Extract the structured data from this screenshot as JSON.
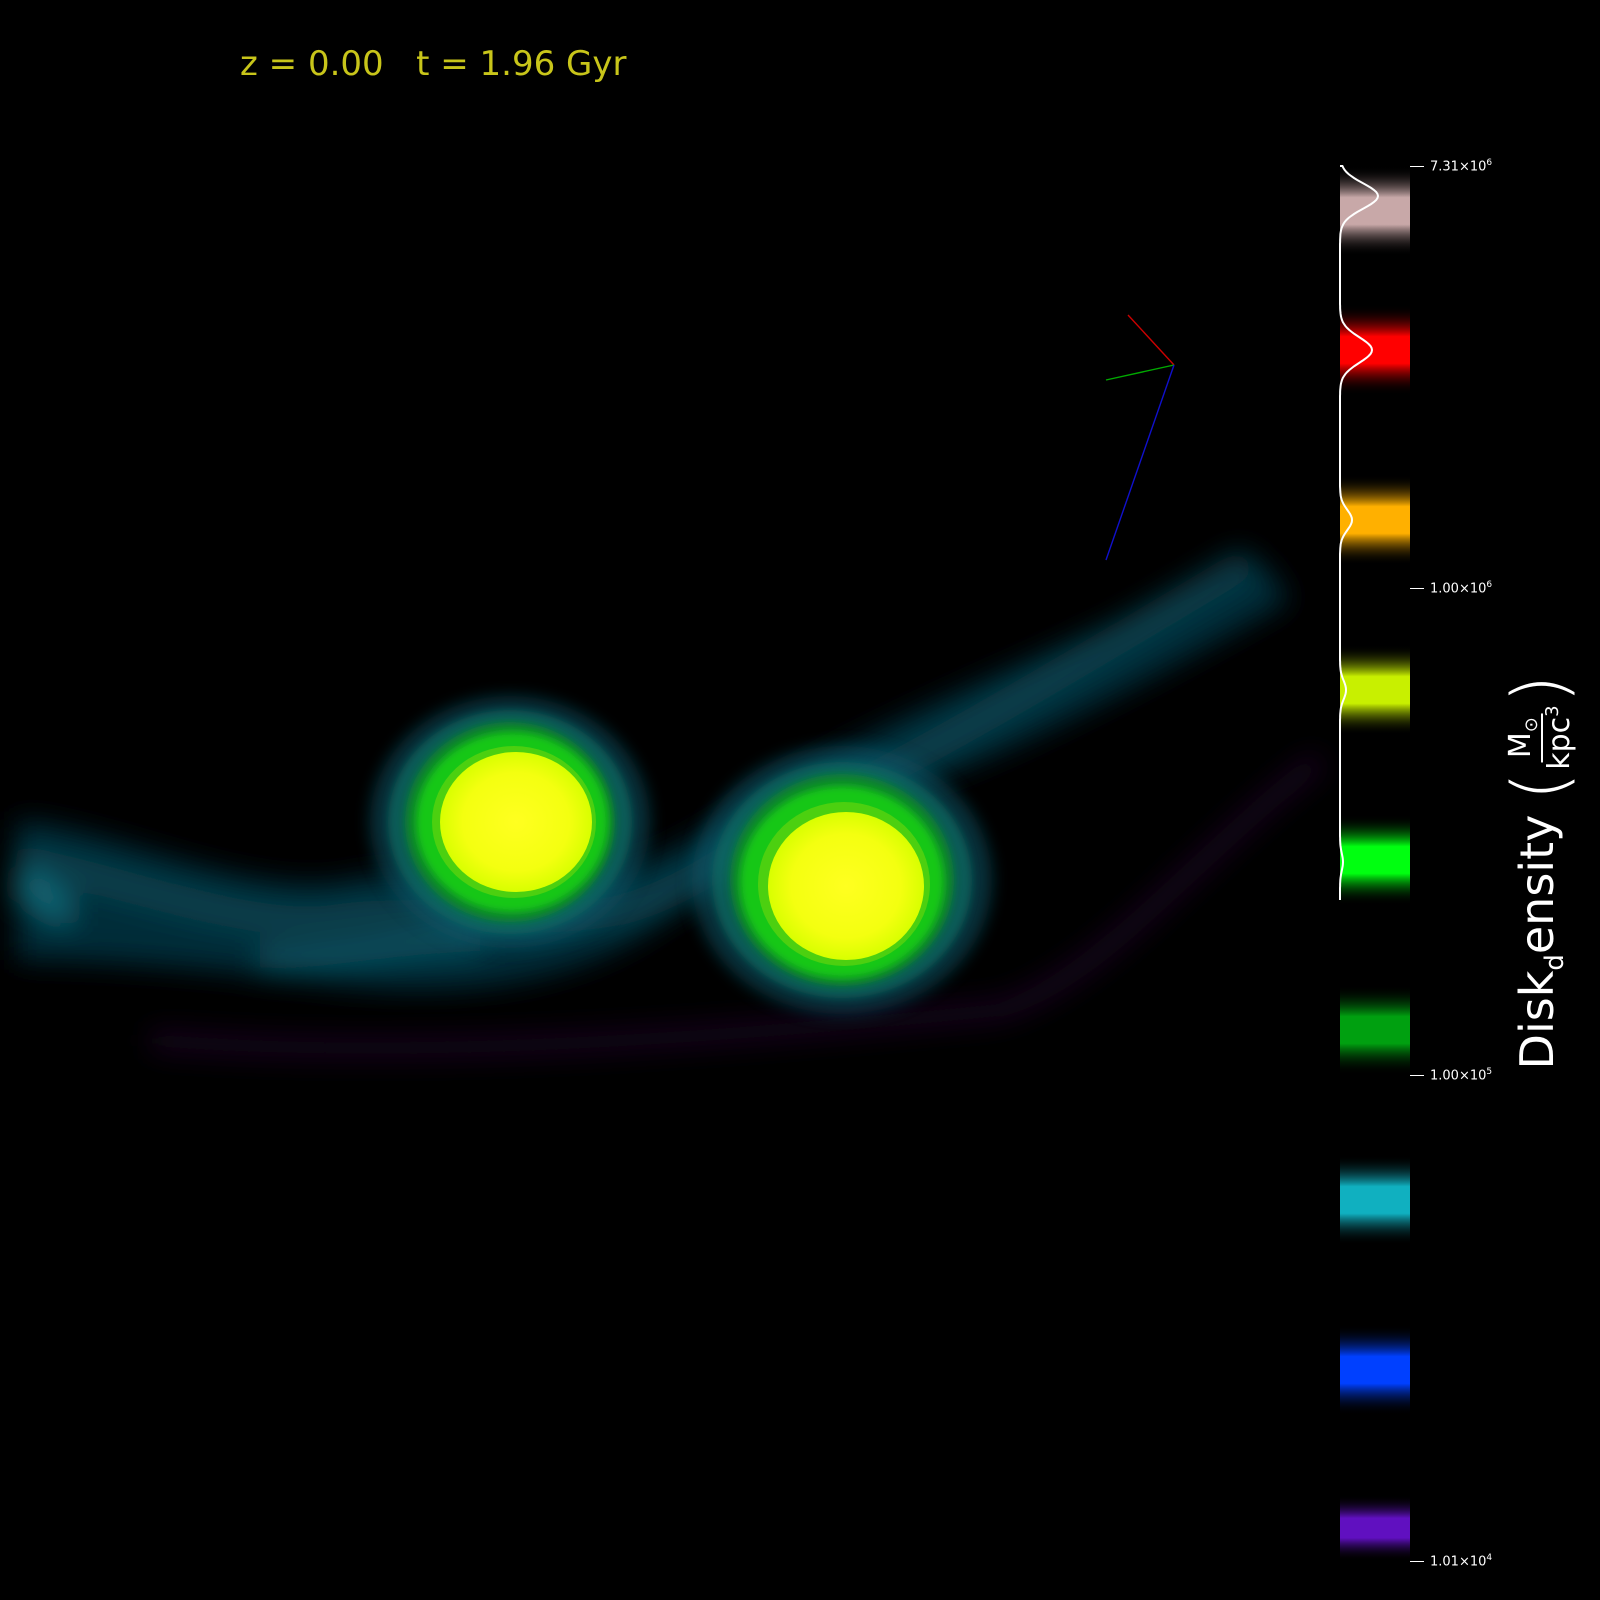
{
  "header": {
    "redshift_text": "z = 0.00",
    "time_text": "t = 1.96 Gyr",
    "text_color": "#c8c51a"
  },
  "colorbar": {
    "ticks": [
      {
        "mantissa": "7.31",
        "exponent": "6"
      },
      {
        "mantissa": "1.00",
        "exponent": "6"
      },
      {
        "mantissa": "1.00",
        "exponent": "5"
      },
      {
        "mantissa": "1.01",
        "exponent": "4"
      }
    ],
    "label_main": "Disk",
    "label_sub": "d",
    "label_rest": "ensity",
    "unit_numerator": "M",
    "unit_numerator_symbol": "⊙",
    "unit_denominator": "kpc",
    "unit_denominator_exp": "3",
    "bands": [
      "#c8a8a8",
      "#ff0000",
      "#ffb000",
      "#c8f000",
      "#00ff10",
      "#00a010",
      "#10b0c0",
      "#0040ff",
      "#6010c0"
    ]
  },
  "axes_triad": {
    "x_color": "#cc0000",
    "y_color": "#00aa00",
    "z_color": "#1010cc"
  }
}
